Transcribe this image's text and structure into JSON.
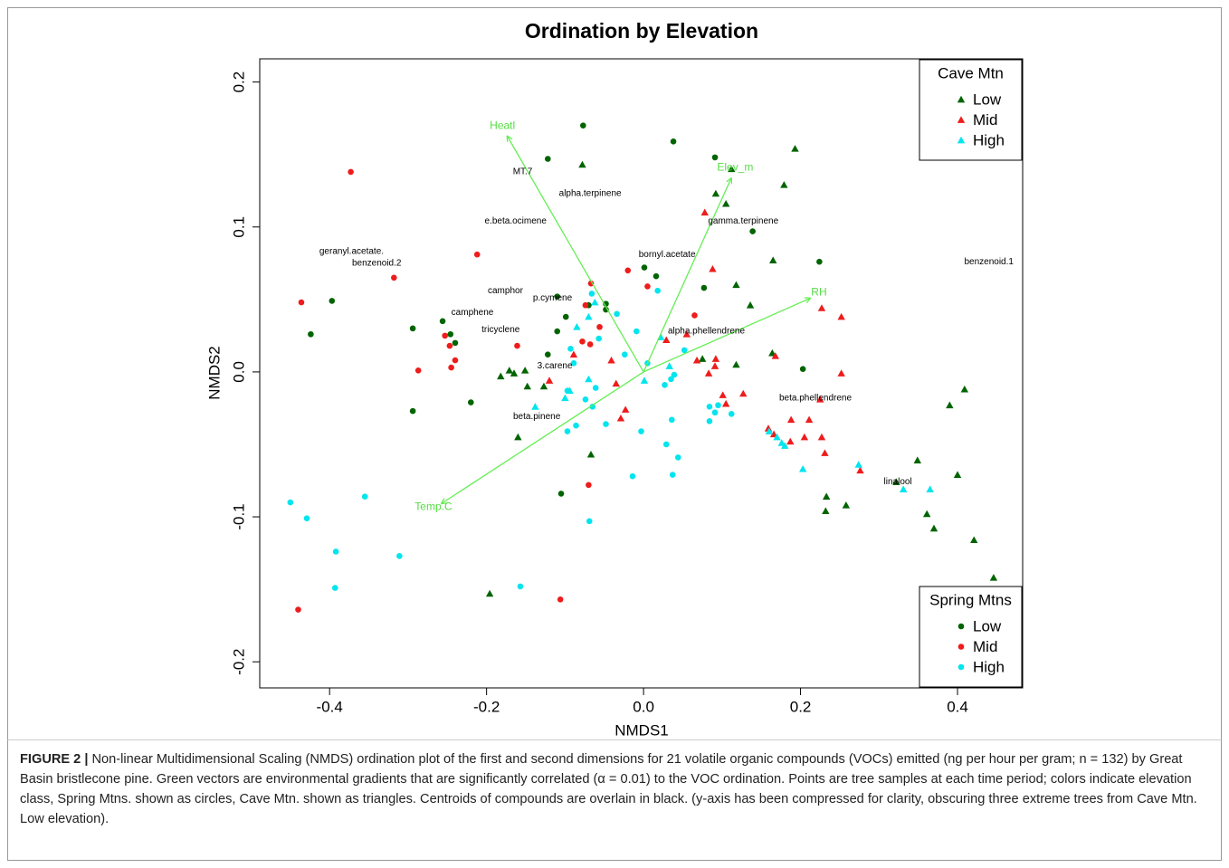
{
  "chart_data": {
    "type": "scatter",
    "title": "Ordination by Elevation",
    "x_label": "NMDS1",
    "y_label": "NMDS2",
    "xlim": [
      -0.489,
      0.483
    ],
    "ylim": [
      -0.218,
      0.216
    ],
    "xticks": [
      -0.4,
      -0.2,
      {
        "value": 0,
        "label": "0.0"
      },
      0.2,
      0.4
    ],
    "yticks": [
      -0.2,
      -0.1,
      {
        "value": 0,
        "label": "0.0"
      },
      0.1,
      0.2
    ],
    "grid": false,
    "legend_groups": [
      {
        "title": "Cave Mtn",
        "corner": "top-right",
        "marker": "triangle"
      },
      {
        "title": "Spring Mtns",
        "corner": "bottom-right",
        "marker": "circle"
      }
    ],
    "series": [
      {
        "name": "Low",
        "group": 0,
        "color": "#006400",
        "x": [
          -0.078,
          0.112,
          0.193,
          0.179,
          0.092,
          0.105,
          0.165,
          0.118,
          0.136,
          0.164,
          0.118,
          0.075,
          -0.182,
          -0.171,
          -0.165,
          -0.151,
          -0.148,
          -0.127,
          -0.16,
          -0.067,
          -0.196,
          0.409,
          0.39,
          0.4,
          0.349,
          0.361,
          0.37,
          0.421,
          0.446,
          0.233,
          0.232,
          0.258,
          0.322
        ],
        "y": [
          0.143,
          0.14,
          0.154,
          0.129,
          0.123,
          0.116,
          0.077,
          0.06,
          0.046,
          0.013,
          0.005,
          0.009,
          -0.003,
          0.001,
          -0.001,
          0.001,
          -0.01,
          -0.01,
          -0.045,
          -0.057,
          -0.153,
          -0.012,
          -0.023,
          -0.071,
          -0.061,
          -0.098,
          -0.108,
          -0.116,
          -0.142,
          -0.086,
          -0.096,
          -0.092,
          -0.076
        ]
      },
      {
        "name": "Mid",
        "group": 0,
        "color": "#ee1c1c",
        "x": [
          0.078,
          0.088,
          0.055,
          0.029,
          -0.089,
          -0.12,
          -0.041,
          -0.035,
          -0.023,
          -0.029,
          0.068,
          0.092,
          0.091,
          0.083,
          0.101,
          0.127,
          0.105,
          0.227,
          0.252,
          0.252,
          0.168,
          0.159,
          0.166,
          0.187,
          0.188,
          0.205,
          0.211,
          0.225,
          0.227,
          0.231,
          0.276
        ],
        "y": [
          0.11,
          0.071,
          0.026,
          0.022,
          0.012,
          -0.006,
          0.008,
          -0.008,
          -0.026,
          -0.032,
          0.008,
          0.009,
          0.004,
          -0.001,
          -0.016,
          -0.015,
          -0.022,
          0.044,
          0.038,
          -0.001,
          0.011,
          -0.039,
          -0.043,
          -0.048,
          -0.033,
          -0.045,
          -0.033,
          -0.019,
          -0.045,
          -0.056,
          -0.068
        ]
      },
      {
        "name": "High",
        "group": 0,
        "color": "#00e5ee",
        "x": [
          -0.138,
          -0.1,
          -0.094,
          -0.07,
          0.001,
          0.033,
          0.022,
          -0.062,
          -0.085,
          -0.07,
          0.16,
          0.176,
          0.17,
          0.18,
          0.203,
          0.274,
          0.331,
          0.365
        ],
        "y": [
          -0.024,
          -0.018,
          -0.013,
          -0.005,
          -0.006,
          0.004,
          0.024,
          0.048,
          0.031,
          0.038,
          -0.041,
          -0.049,
          -0.045,
          -0.051,
          -0.067,
          -0.064,
          -0.081,
          -0.081
        ]
      },
      {
        "name": "Low",
        "group": 1,
        "color": "#006400",
        "x": [
          -0.077,
          0.038,
          0.091,
          -0.122,
          -0.397,
          -0.424,
          -0.256,
          -0.294,
          -0.246,
          -0.24,
          -0.294,
          -0.22,
          0.139,
          0.224,
          0.001,
          0.016,
          0.077,
          -0.11,
          -0.048,
          -0.048,
          -0.099,
          -0.11,
          -0.122,
          0.203,
          -0.105,
          -0.07
        ],
        "y": [
          0.17,
          0.159,
          0.148,
          0.147,
          0.049,
          0.026,
          0.035,
          0.03,
          0.026,
          0.02,
          -0.027,
          -0.021,
          0.097,
          0.076,
          0.072,
          0.066,
          0.058,
          0.052,
          0.047,
          0.043,
          0.038,
          0.028,
          0.012,
          0.002,
          -0.084,
          0.046
        ]
      },
      {
        "name": "Mid",
        "group": 1,
        "color": "#ee1c1c",
        "x": [
          -0.373,
          -0.436,
          -0.318,
          -0.212,
          -0.287,
          -0.253,
          -0.247,
          -0.24,
          -0.245,
          -0.161,
          -0.02,
          0.005,
          -0.067,
          -0.074,
          -0.056,
          -0.068,
          -0.078,
          0.065,
          -0.07,
          -0.106,
          -0.44
        ],
        "y": [
          0.138,
          0.048,
          0.065,
          0.081,
          0.001,
          0.025,
          0.018,
          0.008,
          0.003,
          0.018,
          0.07,
          0.059,
          0.061,
          0.046,
          0.031,
          0.019,
          0.021,
          0.039,
          -0.078,
          -0.157,
          -0.164
        ]
      },
      {
        "name": "High",
        "group": 1,
        "color": "#00e5ee",
        "x": [
          -0.45,
          -0.429,
          -0.355,
          -0.392,
          -0.311,
          -0.393,
          -0.157,
          -0.069,
          -0.014,
          -0.003,
          0.036,
          -0.097,
          -0.066,
          -0.034,
          -0.057,
          -0.024,
          -0.009,
          0.018,
          -0.093,
          -0.089,
          -0.097,
          -0.061,
          -0.074,
          -0.065,
          -0.048,
          -0.086,
          0.005,
          0.052,
          0.035,
          0.039,
          0.027,
          0.084,
          0.091,
          0.095,
          0.084,
          0.029,
          0.044,
          0.037,
          0.112
        ],
        "y": [
          -0.09,
          -0.101,
          -0.086,
          -0.124,
          -0.127,
          -0.149,
          -0.148,
          -0.103,
          -0.072,
          -0.041,
          -0.033,
          -0.041,
          0.054,
          0.04,
          0.023,
          0.012,
          0.028,
          0.056,
          0.016,
          0.006,
          -0.013,
          -0.011,
          -0.019,
          -0.024,
          -0.036,
          -0.037,
          0.006,
          0.015,
          -0.005,
          -0.002,
          -0.009,
          -0.034,
          -0.028,
          -0.023,
          -0.024,
          -0.05,
          -0.059,
          -0.071,
          -0.029
        ]
      }
    ],
    "vector_color": "#66ee55",
    "vectors": [
      {
        "label": "Heatl",
        "x": -0.174,
        "y": 0.163
      },
      {
        "label": "Elev_m",
        "x": 0.112,
        "y": 0.134
      },
      {
        "label": "RH",
        "x": 0.213,
        "y": 0.051
      },
      {
        "label": "Temp.C",
        "x": -0.258,
        "y": -0.091
      }
    ],
    "compounds": [
      {
        "label": "MT.7",
        "x": -0.154,
        "y": 0.138
      },
      {
        "label": "alpha.terpinene",
        "x": -0.068,
        "y": 0.123
      },
      {
        "label": "e.beta.ocimene",
        "x": -0.163,
        "y": 0.104
      },
      {
        "label": "gamma.terpinene",
        "x": 0.127,
        "y": 0.104
      },
      {
        "label": "geranyl.acetate.",
        "x": -0.372,
        "y": 0.083
      },
      {
        "label": "benzenoid.2",
        "x": -0.34,
        "y": 0.075
      },
      {
        "label": "bornyl.acetate",
        "x": 0.03,
        "y": 0.081
      },
      {
        "label": "benzenoid.1",
        "x": 0.44,
        "y": 0.076
      },
      {
        "label": "camphor",
        "x": -0.176,
        "y": 0.056
      },
      {
        "label": "p.cymene",
        "x": -0.116,
        "y": 0.051
      },
      {
        "label": "camphene",
        "x": -0.218,
        "y": 0.041
      },
      {
        "label": "tricyclene",
        "x": -0.182,
        "y": 0.029
      },
      {
        "label": "alpha.phellendrene",
        "x": 0.08,
        "y": 0.028
      },
      {
        "label": "3.carene",
        "x": -0.113,
        "y": 0.004
      },
      {
        "label": "beta.phellendrene",
        "x": 0.219,
        "y": -0.018
      },
      {
        "label": "beta.pinene",
        "x": -0.136,
        "y": -0.031
      },
      {
        "label": "linalool",
        "x": 0.324,
        "y": -0.076
      }
    ],
    "caption_label": "FIGURE 2 |",
    "caption_text": "Non-linear Multidimensional Scaling (NMDS) ordination plot of the first and second dimensions for 21 volatile organic compounds (VOCs) emitted (ng per hour per gram; n = 132) by Great Basin bristlecone pine. Green vectors are environmental gradients that are significantly correlated (α = 0.01) to the VOC ordination. Points are tree samples at each time period; colors indicate elevation class, Spring Mtns. shown as circles, Cave Mtn. shown as triangles. Centroids of compounds are overlain in black. (y-axis has been compressed for clarity, obscuring three extreme trees from Cave Mtn. Low elevation)."
  }
}
